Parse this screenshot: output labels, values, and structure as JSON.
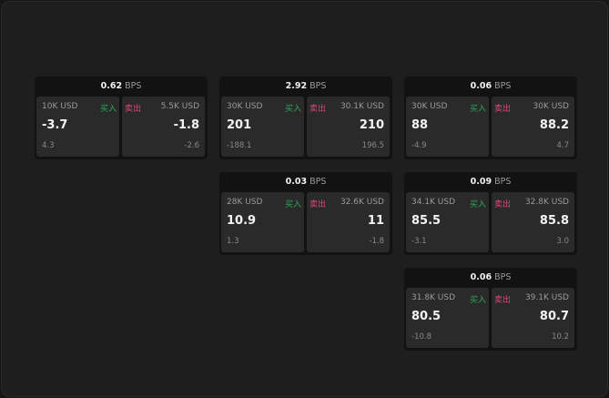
{
  "unit": "BPS",
  "buy_label": "买入",
  "sell_label": "卖出",
  "colors": {
    "buy": "#2ea85a",
    "sell": "#e0457a"
  },
  "widgets": [
    {
      "spread": "0.62",
      "bid_size": "10K USD",
      "bid": "-3.7",
      "bid_change": "4.3",
      "ask_size": "5.5K USD",
      "ask": "-1.8",
      "ask_change": "-2.6"
    },
    {
      "spread": "2.92",
      "bid_size": "30K USD",
      "bid": "201",
      "bid_change": "-188.1",
      "ask_size": "30.1K USD",
      "ask": "210",
      "ask_change": "196.5"
    },
    {
      "spread": "0.06",
      "bid_size": "30K USD",
      "bid": "88",
      "bid_change": "-4.9",
      "ask_size": "30K USD",
      "ask": "88.2",
      "ask_change": "4.7"
    },
    {
      "spread": "0.03",
      "bid_size": "28K USD",
      "bid": "10.9",
      "bid_change": "1.3",
      "ask_size": "32.6K USD",
      "ask": "11",
      "ask_change": "-1.8"
    },
    {
      "spread": "0.09",
      "bid_size": "34.1K USD",
      "bid": "85.5",
      "bid_change": "-3.1",
      "ask_size": "32.8K USD",
      "ask": "85.8",
      "ask_change": "3.0"
    },
    {
      "spread": "0.06",
      "bid_size": "31.8K USD",
      "bid": "80.5",
      "bid_change": "-10.8",
      "ask_size": "39.1K USD",
      "ask": "80.7",
      "ask_change": "10.2"
    }
  ]
}
